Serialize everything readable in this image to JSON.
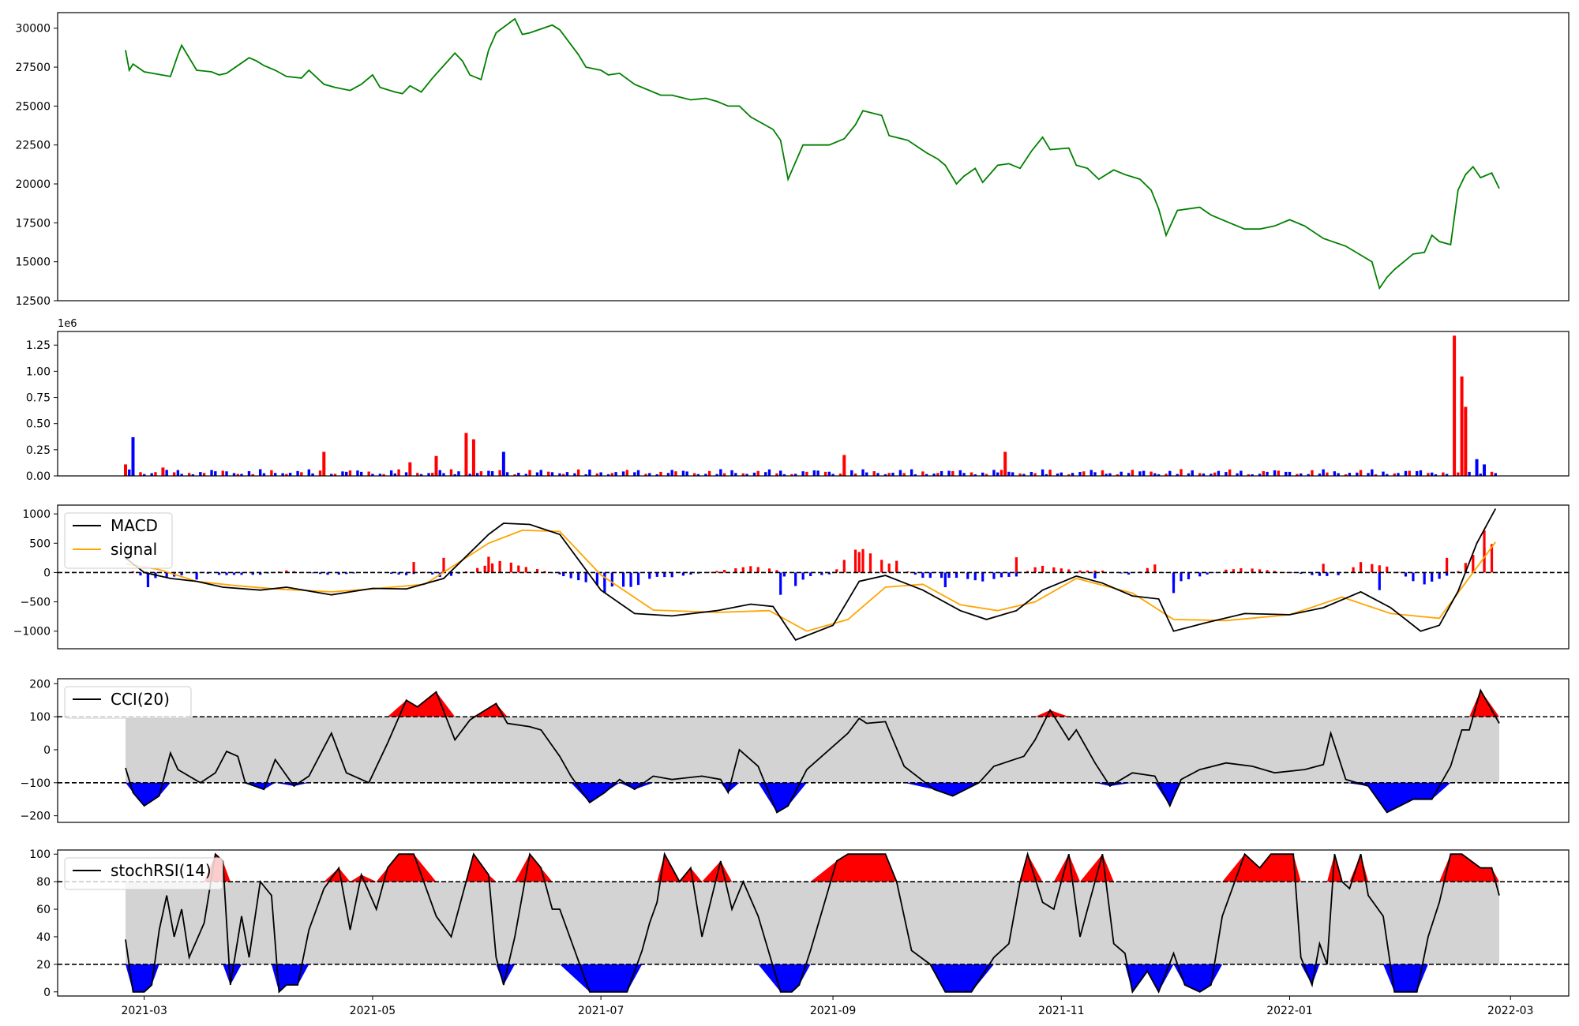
{
  "colors": {
    "price": "#008000",
    "up": "#ff0000",
    "down": "#0000ff",
    "macd": "#000000",
    "signal": "#ffa500",
    "band": "#d3d3d3",
    "ref": "#000000"
  },
  "x_axis": {
    "tick_labels": [
      "2021-03",
      "2021-05",
      "2021-07",
      "2021-09",
      "2021-11",
      "2022-01",
      "2022-03"
    ]
  },
  "chart_data": [
    {
      "type": "line",
      "name": "price",
      "ylim": [
        12500,
        31000
      ],
      "yticks": [
        12500,
        15000,
        17500,
        20000,
        22500,
        25000,
        27500,
        30000
      ],
      "ytick_labels": [
        "12500",
        "15000",
        "17500",
        "20000",
        "22500",
        "25000",
        "27500",
        "30000"
      ],
      "x": [
        "2021-02-24",
        "2021-02-25",
        "2021-02-26",
        "2021-03-01",
        "2021-03-08",
        "2021-03-10",
        "2021-03-11",
        "2021-03-15",
        "2021-03-19",
        "2021-03-21",
        "2021-03-23",
        "2021-03-29",
        "2021-03-31",
        "2021-04-02",
        "2021-04-05",
        "2021-04-08",
        "2021-04-12",
        "2021-04-14",
        "2021-04-18",
        "2021-04-21",
        "2021-04-25",
        "2021-04-28",
        "2021-05-01",
        "2021-05-03",
        "2021-05-07",
        "2021-05-09",
        "2021-05-11",
        "2021-05-14",
        "2021-05-17",
        "2021-05-20",
        "2021-05-23",
        "2021-05-25",
        "2021-05-27",
        "2021-05-30",
        "2021-06-01",
        "2021-06-03",
        "2021-06-08",
        "2021-06-10",
        "2021-06-12",
        "2021-06-18",
        "2021-06-20",
        "2021-06-25",
        "2021-06-27",
        "2021-07-01",
        "2021-07-03",
        "2021-07-06",
        "2021-07-10",
        "2021-07-17",
        "2021-07-20",
        "2021-07-25",
        "2021-07-29",
        "2021-08-01",
        "2021-08-04",
        "2021-08-07",
        "2021-08-10",
        "2021-08-16",
        "2021-08-18",
        "2021-08-20",
        "2021-08-24",
        "2021-08-31",
        "2021-09-04",
        "2021-09-07",
        "2021-09-09",
        "2021-09-14",
        "2021-09-16",
        "2021-09-21",
        "2021-09-26",
        "2021-09-29",
        "2021-10-01",
        "2021-10-04",
        "2021-10-06",
        "2021-10-09",
        "2021-10-11",
        "2021-10-15",
        "2021-10-18",
        "2021-10-21",
        "2021-10-24",
        "2021-10-27",
        "2021-10-29",
        "2021-11-03",
        "2021-11-05",
        "2021-11-08",
        "2021-11-11",
        "2021-11-15",
        "2021-11-18",
        "2021-11-22",
        "2021-11-25",
        "2021-11-27",
        "2021-11-29",
        "2021-12-02",
        "2021-12-08",
        "2021-12-11",
        "2021-12-16",
        "2021-12-20",
        "2021-12-24",
        "2021-12-28",
        "2022-01-01",
        "2022-01-05",
        "2022-01-10",
        "2022-01-16",
        "2022-01-23",
        "2022-01-25",
        "2022-01-27",
        "2022-01-29",
        "2022-02-03",
        "2022-02-06",
        "2022-02-08",
        "2022-02-10",
        "2022-02-13",
        "2022-02-15",
        "2022-02-17",
        "2022-02-19",
        "2022-02-21",
        "2022-02-24",
        "2022-02-26"
      ],
      "y": [
        28600,
        27300,
        27700,
        27200,
        26900,
        28300,
        28900,
        27300,
        27200,
        27000,
        27100,
        28100,
        27900,
        27600,
        27300,
        26900,
        26800,
        27300,
        26400,
        26200,
        26000,
        26400,
        27000,
        26200,
        25900,
        25800,
        26300,
        25900,
        26800,
        27600,
        28400,
        27900,
        27000,
        26700,
        28600,
        29700,
        30600,
        29600,
        29700,
        30200,
        29900,
        28300,
        27500,
        27300,
        27000,
        27100,
        26400,
        25700,
        25700,
        25400,
        25500,
        25300,
        25000,
        25000,
        24300,
        23500,
        22800,
        20300,
        22500,
        22500,
        22900,
        23800,
        24700,
        24400,
        23100,
        22800,
        22000,
        21600,
        21200,
        20000,
        20500,
        21000,
        20100,
        21200,
        21300,
        21000,
        22100,
        23000,
        22200,
        22300,
        21200,
        21000,
        20300,
        20900,
        20600,
        20300,
        19600,
        18400,
        16700,
        18300,
        18500,
        18000,
        17500,
        17100,
        17100,
        17300,
        17700,
        17300,
        16500,
        16000,
        15000,
        13300,
        14000,
        14500,
        15500,
        15600,
        16700,
        16300,
        16100,
        19600,
        20600,
        21100,
        20400,
        20700,
        19700
      ]
    },
    {
      "type": "bar",
      "name": "volume",
      "offset_label": "1e6",
      "ylim": [
        0,
        1.38
      ],
      "yticks": [
        0,
        0.25,
        0.5,
        0.75,
        1.0,
        1.25
      ],
      "ytick_labels": [
        "0.00",
        "0.25",
        "0.50",
        "0.75",
        "1.00",
        "1.25"
      ],
      "x": [
        "2021-02-24",
        "2021-02-26",
        "2021-03-06",
        "2021-04-18",
        "2021-05-11",
        "2021-05-18",
        "2021-05-26",
        "2021-05-28",
        "2021-06-05",
        "2021-09-04",
        "2021-10-17",
        "2022-02-14",
        "2022-02-16",
        "2022-02-17",
        "2022-02-20",
        "2022-02-22"
      ],
      "values": [
        0.11,
        0.37,
        0.08,
        0.23,
        0.13,
        0.19,
        0.41,
        0.35,
        0.23,
        0.2,
        0.23,
        1.34,
        0.95,
        0.66,
        0.16,
        0.11
      ],
      "directions": [
        "up",
        "down",
        "up",
        "up",
        "up",
        "up",
        "up",
        "up",
        "down",
        "up",
        "up",
        "up",
        "up",
        "up",
        "down",
        "down"
      ]
    },
    {
      "type": "line",
      "name": "macd",
      "ylim": [
        -1300,
        1150
      ],
      "yticks": [
        -1000,
        -500,
        0,
        500,
        1000
      ],
      "ytick_labels": [
        "−1000",
        "−500",
        "0",
        "500",
        "1000"
      ],
      "ref_lines": [
        0
      ],
      "legend": [
        "MACD",
        "signal"
      ],
      "series": [
        {
          "name": "MACD",
          "x": [
            "2021-02-24",
            "2021-03-01",
            "2021-03-08",
            "2021-03-15",
            "2021-03-22",
            "2021-04-01",
            "2021-04-08",
            "2021-04-20",
            "2021-05-01",
            "2021-05-10",
            "2021-05-20",
            "2021-06-01",
            "2021-06-05",
            "2021-06-12",
            "2021-06-20",
            "2021-07-01",
            "2021-07-10",
            "2021-07-20",
            "2021-08-01",
            "2021-08-10",
            "2021-08-16",
            "2021-08-22",
            "2021-09-01",
            "2021-09-08",
            "2021-09-15",
            "2021-09-25",
            "2021-10-05",
            "2021-10-12",
            "2021-10-20",
            "2021-10-27",
            "2021-11-05",
            "2021-11-12",
            "2021-11-20",
            "2021-11-27",
            "2021-12-01",
            "2021-12-10",
            "2021-12-20",
            "2022-01-01",
            "2022-01-10",
            "2022-01-20",
            "2022-01-28",
            "2022-02-05",
            "2022-02-10",
            "2022-02-15",
            "2022-02-20",
            "2022-02-25"
          ],
          "y": [
            250,
            0,
            -100,
            -150,
            -250,
            -300,
            -250,
            -380,
            -270,
            -280,
            -100,
            650,
            840,
            820,
            650,
            -300,
            -700,
            -740,
            -650,
            -540,
            -580,
            -1150,
            -900,
            -150,
            -50,
            -300,
            -650,
            -800,
            -650,
            -300,
            -60,
            -180,
            -400,
            -450,
            -1000,
            -850,
            -700,
            -720,
            -600,
            -330,
            -600,
            -1000,
            -900,
            -320,
            500,
            1090
          ]
        },
        {
          "name": "signal",
          "x": [
            "2021-02-24",
            "2021-03-05",
            "2021-03-15",
            "2021-03-25",
            "2021-04-05",
            "2021-04-20",
            "2021-05-01",
            "2021-05-15",
            "2021-06-01",
            "2021-06-10",
            "2021-06-20",
            "2021-07-01",
            "2021-07-15",
            "2021-08-01",
            "2021-08-15",
            "2021-08-25",
            "2021-09-05",
            "2021-09-15",
            "2021-09-25",
            "2021-10-05",
            "2021-10-15",
            "2021-10-25",
            "2021-11-05",
            "2021-11-20",
            "2021-12-01",
            "2021-12-15",
            "2022-01-01",
            "2022-01-15",
            "2022-01-28",
            "2022-02-10",
            "2022-02-25"
          ],
          "y": [
            150,
            50,
            -150,
            -220,
            -280,
            -330,
            -280,
            -200,
            500,
            720,
            700,
            -40,
            -640,
            -680,
            -650,
            -1000,
            -800,
            -250,
            -200,
            -550,
            -650,
            -500,
            -100,
            -350,
            -800,
            -820,
            -720,
            -420,
            -700,
            -780,
            520
          ]
        }
      ],
      "hist_x": [
        "2021-03-02",
        "2021-03-15",
        "2021-05-12",
        "2021-05-20",
        "2021-06-01",
        "2021-06-20",
        "2021-07-02",
        "2021-08-18",
        "2021-09-08",
        "2021-09-18",
        "2021-10-01",
        "2021-10-20",
        "2021-11-10",
        "2021-12-01",
        "2021-12-15",
        "2022-01-10",
        "2022-01-25",
        "2022-02-12",
        "2022-02-22"
      ],
      "hist_values": [
        -250,
        -120,
        180,
        250,
        270,
        -30,
        -350,
        -380,
        350,
        200,
        -250,
        260,
        -100,
        -350,
        50,
        150,
        -300,
        250,
        720
      ]
    },
    {
      "type": "line",
      "name": "cci",
      "ylim": [
        -220,
        215
      ],
      "yticks": [
        -200,
        -100,
        0,
        100,
        200
      ],
      "ytick_labels": [
        "−200",
        "−100",
        "0",
        "100",
        "200"
      ],
      "band": [
        -100,
        100
      ],
      "legend": [
        "CCI(20)"
      ],
      "x": [
        "2021-02-24",
        "2021-02-26",
        "2021-03-01",
        "2021-03-05",
        "2021-03-08",
        "2021-03-10",
        "2021-03-16",
        "2021-03-20",
        "2021-03-23",
        "2021-03-26",
        "2021-03-28",
        "2021-04-02",
        "2021-04-05",
        "2021-04-10",
        "2021-04-14",
        "2021-04-20",
        "2021-04-24",
        "2021-04-30",
        "2021-05-05",
        "2021-05-10",
        "2021-05-13",
        "2021-05-18",
        "2021-05-23",
        "2021-05-27",
        "2021-05-29",
        "2021-06-03",
        "2021-06-06",
        "2021-06-12",
        "2021-06-15",
        "2021-06-20",
        "2021-06-23",
        "2021-06-28",
        "2021-07-02",
        "2021-07-06",
        "2021-07-10",
        "2021-07-15",
        "2021-07-20",
        "2021-07-28",
        "2021-08-02",
        "2021-08-04",
        "2021-08-07",
        "2021-08-12",
        "2021-08-17",
        "2021-08-20",
        "2021-08-25",
        "2021-09-05",
        "2021-09-08",
        "2021-09-10",
        "2021-09-15",
        "2021-09-20",
        "2021-09-28",
        "2021-10-03",
        "2021-10-10",
        "2021-10-14",
        "2021-10-22",
        "2021-10-25",
        "2021-10-29",
        "2021-11-03",
        "2021-11-05",
        "2021-11-10",
        "2021-11-14",
        "2021-11-20",
        "2021-11-26",
        "2021-11-30",
        "2021-12-03",
        "2021-12-08",
        "2021-12-15",
        "2021-12-22",
        "2021-12-28",
        "2022-01-05",
        "2022-01-10",
        "2022-01-12",
        "2022-01-16",
        "2022-01-22",
        "2022-01-27",
        "2022-02-03",
        "2022-02-08",
        "2022-02-13",
        "2022-02-16",
        "2022-02-18",
        "2022-02-21",
        "2022-02-26"
      ],
      "y": [
        -55,
        -130,
        -170,
        -140,
        -10,
        -60,
        -100,
        -70,
        -5,
        -20,
        -100,
        -120,
        -30,
        -110,
        -80,
        50,
        -70,
        -100,
        20,
        150,
        130,
        175,
        30,
        90,
        105,
        140,
        80,
        70,
        60,
        -20,
        -80,
        -160,
        -130,
        -90,
        -120,
        -80,
        -90,
        -80,
        -90,
        -130,
        0,
        -50,
        -190,
        -170,
        -60,
        50,
        95,
        80,
        85,
        -50,
        -120,
        -140,
        -100,
        -50,
        -20,
        30,
        120,
        30,
        60,
        -40,
        -110,
        -70,
        -80,
        -170,
        -90,
        -60,
        -40,
        -50,
        -70,
        -60,
        -45,
        50,
        -90,
        -110,
        -190,
        -150,
        -150,
        -50,
        60,
        60,
        180,
        80
      ]
    },
    {
      "type": "line",
      "name": "stochRSI",
      "ylim": [
        -3,
        103
      ],
      "yticks": [
        0,
        20,
        40,
        60,
        80,
        100
      ],
      "ytick_labels": [
        "0",
        "20",
        "40",
        "60",
        "80",
        "100"
      ],
      "band": [
        20,
        80
      ],
      "legend": [
        "stochRSI(14)"
      ],
      "x": [
        "2021-02-24",
        "2021-02-26",
        "2021-03-01",
        "2021-03-03",
        "2021-03-05",
        "2021-03-07",
        "2021-03-09",
        "2021-03-11",
        "2021-03-13",
        "2021-03-17",
        "2021-03-20",
        "2021-03-22",
        "2021-03-24",
        "2021-03-27",
        "2021-03-29",
        "2021-04-01",
        "2021-04-04",
        "2021-04-06",
        "2021-04-08",
        "2021-04-11",
        "2021-04-14",
        "2021-04-18",
        "2021-04-22",
        "2021-04-25",
        "2021-04-28",
        "2021-05-02",
        "2021-05-05",
        "2021-05-08",
        "2021-05-12",
        "2021-05-18",
        "2021-05-22",
        "2021-05-26",
        "2021-05-28",
        "2021-06-01",
        "2021-06-03",
        "2021-06-05",
        "2021-06-08",
        "2021-06-12",
        "2021-06-15",
        "2021-06-18",
        "2021-06-20",
        "2021-06-28",
        "2021-07-03",
        "2021-07-08",
        "2021-07-12",
        "2021-07-14",
        "2021-07-16",
        "2021-07-18",
        "2021-07-22",
        "2021-07-25",
        "2021-07-28",
        "2021-08-02",
        "2021-08-05",
        "2021-08-08",
        "2021-08-12",
        "2021-08-18",
        "2021-08-21",
        "2021-08-23",
        "2021-08-26",
        "2021-09-02",
        "2021-09-05",
        "2021-09-15",
        "2021-09-18",
        "2021-09-22",
        "2021-09-27",
        "2021-10-01",
        "2021-10-08",
        "2021-10-14",
        "2021-10-18",
        "2021-10-21",
        "2021-10-23",
        "2021-10-27",
        "2021-10-30",
        "2021-11-03",
        "2021-11-06",
        "2021-11-12",
        "2021-11-15",
        "2021-11-18",
        "2021-11-20",
        "2021-11-24",
        "2021-11-27",
        "2021-12-01",
        "2021-12-04",
        "2021-12-08",
        "2021-12-11",
        "2021-12-14",
        "2021-12-20",
        "2021-12-24",
        "2021-12-27",
        "2022-01-02",
        "2022-01-04",
        "2022-01-07",
        "2022-01-09",
        "2022-01-11",
        "2022-01-13",
        "2022-01-15",
        "2022-01-17",
        "2022-01-20",
        "2022-01-22",
        "2022-01-26",
        "2022-01-29",
        "2022-02-04",
        "2022-02-07",
        "2022-02-10",
        "2022-02-13",
        "2022-02-16",
        "2022-02-21",
        "2022-02-24",
        "2022-02-26"
      ],
      "y": [
        38,
        0,
        0,
        5,
        45,
        70,
        40,
        60,
        25,
        50,
        100,
        95,
        5,
        55,
        25,
        80,
        70,
        0,
        5,
        5,
        45,
        75,
        90,
        45,
        85,
        60,
        90,
        100,
        100,
        55,
        40,
        80,
        100,
        85,
        25,
        5,
        40,
        100,
        90,
        60,
        60,
        0,
        0,
        0,
        30,
        50,
        65,
        100,
        80,
        90,
        40,
        95,
        60,
        80,
        55,
        0,
        0,
        5,
        30,
        95,
        100,
        100,
        80,
        30,
        20,
        0,
        0,
        25,
        35,
        80,
        100,
        65,
        60,
        100,
        40,
        100,
        35,
        28,
        0,
        15,
        0,
        28,
        5,
        0,
        5,
        55,
        100,
        90,
        100,
        100,
        25,
        5,
        35,
        20,
        100,
        80,
        75,
        100,
        70,
        55,
        0,
        0,
        40,
        65,
        100,
        100,
        90,
        90,
        70
      ]
    }
  ]
}
